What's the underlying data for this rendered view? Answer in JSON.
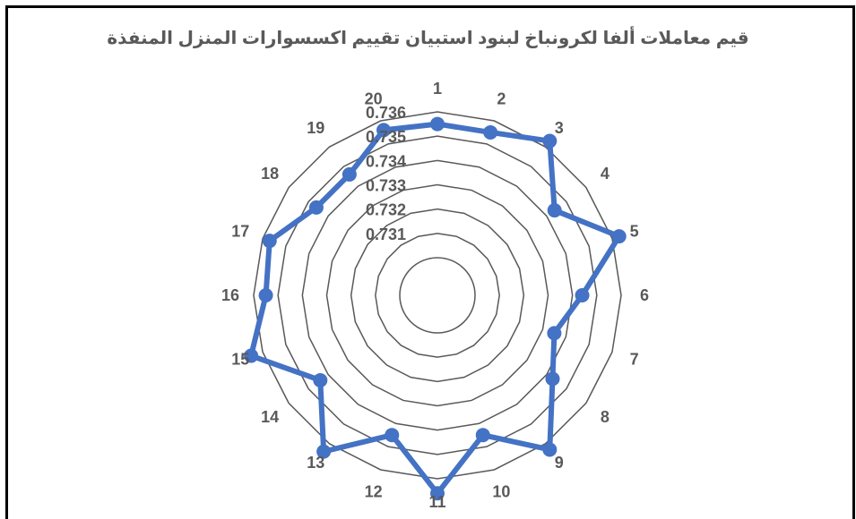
{
  "chart_data": {
    "type": "radar",
    "title": "قيم معاملات ألفا لكرونباخ لبنود استبيان تقييم اكسسوارات المنزل المنفذة",
    "categories": [
      "1",
      "2",
      "3",
      "4",
      "5",
      "6",
      "7",
      "8",
      "9",
      "10",
      "11",
      "12",
      "13",
      "14",
      "15",
      "16",
      "17",
      "18",
      "19",
      "20"
    ],
    "series": [
      {
        "values": [
          0.7355,
          0.7355,
          0.7363,
          0.7344,
          0.7363,
          0.7344,
          0.7335,
          0.7343,
          0.7363,
          0.7345,
          0.7366,
          0.7345,
          0.7364,
          0.7344,
          0.7365,
          0.7355,
          0.7357,
          0.7346,
          0.7346,
          0.7356
        ],
        "color": "#4472C4"
      }
    ],
    "radial_ticks": [
      "0.731",
      "0.732",
      "0.733",
      "0.734",
      "0.735",
      "0.736"
    ],
    "rmin": 0.73,
    "rmax": 0.736,
    "grid": true
  }
}
